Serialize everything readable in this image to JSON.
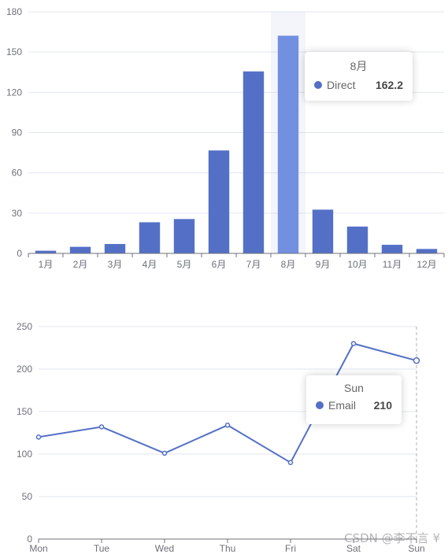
{
  "chart_data": [
    {
      "type": "bar",
      "categories": [
        "1月",
        "2月",
        "3月",
        "4月",
        "5月",
        "6月",
        "7月",
        "8月",
        "9月",
        "10月",
        "11月",
        "12月"
      ],
      "values": [
        2.0,
        4.9,
        7.0,
        23.2,
        25.6,
        76.7,
        135.6,
        162.2,
        32.6,
        20.0,
        6.4,
        3.3
      ],
      "ylim": [
        0,
        180
      ],
      "yticks": [
        0,
        30,
        60,
        90,
        120,
        150,
        180
      ],
      "color": "#5470c6",
      "highlight_color": "#738fe0",
      "grid": true,
      "tooltip": {
        "title": "8月",
        "series_name": "Direct",
        "value": "162.2"
      }
    },
    {
      "type": "line",
      "x": [
        "Mon",
        "Tue",
        "Wed",
        "Thu",
        "Fri",
        "Sat",
        "Sun"
      ],
      "values": [
        120,
        132,
        101,
        134,
        90,
        230,
        210
      ],
      "ylim": [
        0,
        250
      ],
      "yticks": [
        0,
        50,
        100,
        150,
        200,
        250
      ],
      "color": "#5470c6",
      "grid": true,
      "tooltip": {
        "title": "Sun",
        "series_name": "Email",
        "value": "210"
      }
    }
  ],
  "watermark": "CSDN @李不言 ¥"
}
